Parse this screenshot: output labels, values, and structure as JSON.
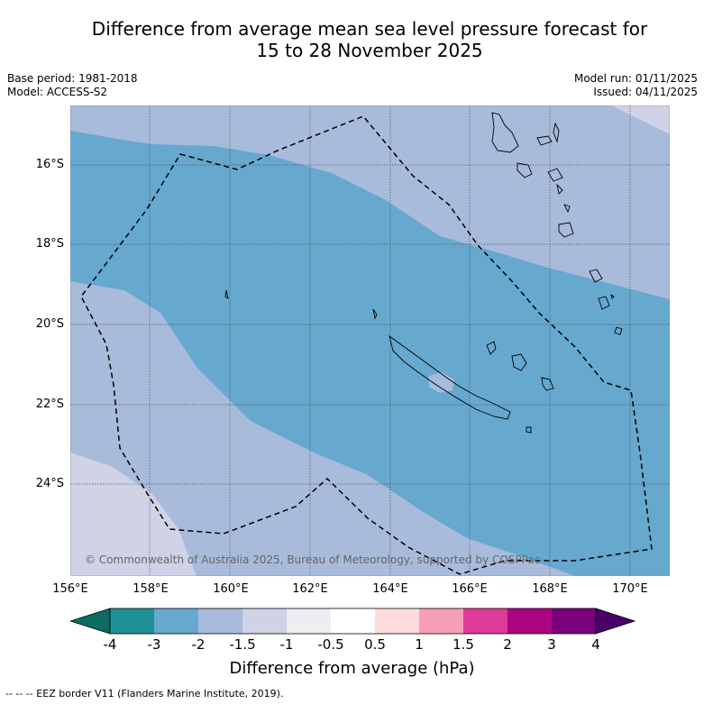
{
  "title": {
    "line1": "Difference from average mean sea level pressure forecast for",
    "line2": "15 to 28 November 2025"
  },
  "meta": {
    "base_period": "Base period: 1981-2018",
    "model": "Model: ACCESS-S2",
    "model_run": "Model run: 01/11/2025",
    "issued": "Issued: 04/11/2025"
  },
  "map": {
    "lat_labels": [
      "16°S",
      "18°S",
      "20°S",
      "22°S",
      "24°S"
    ],
    "lon_labels": [
      "156°E",
      "158°E",
      "160°E",
      "162°E",
      "164°E",
      "166°E",
      "168°E",
      "170°E"
    ],
    "copyright": "© Commonwealth of Australia 2025, Bureau of Meteorology, supported by COSPPac",
    "colors": {
      "band_minus3_to_minus2": "#66a8ce",
      "band_minus2_to_minus1_5": "#a8bbdb",
      "band_minus1_5_to_minus1": "#d0d2e6",
      "land_outline": "#000000"
    }
  },
  "colorbar": {
    "title": "Difference from average (hPa)",
    "ticks": [
      "-4",
      "-3",
      "-2",
      "-1.5",
      "-1",
      "-0.5",
      "0.5",
      "1",
      "1.5",
      "2",
      "3",
      "4"
    ],
    "colors": [
      "#0d6b61",
      "#1f9196",
      "#66a8ce",
      "#a8bbdb",
      "#d0d2e6",
      "#eeedf2",
      "#ffffff",
      "#fddcdc",
      "#f69eb8",
      "#df3a98",
      "#ac0582",
      "#7a017b",
      "#4a0068"
    ]
  },
  "footer": "--  --  -- EEZ border V11 (Flanders Marine Institute, 2019)."
}
